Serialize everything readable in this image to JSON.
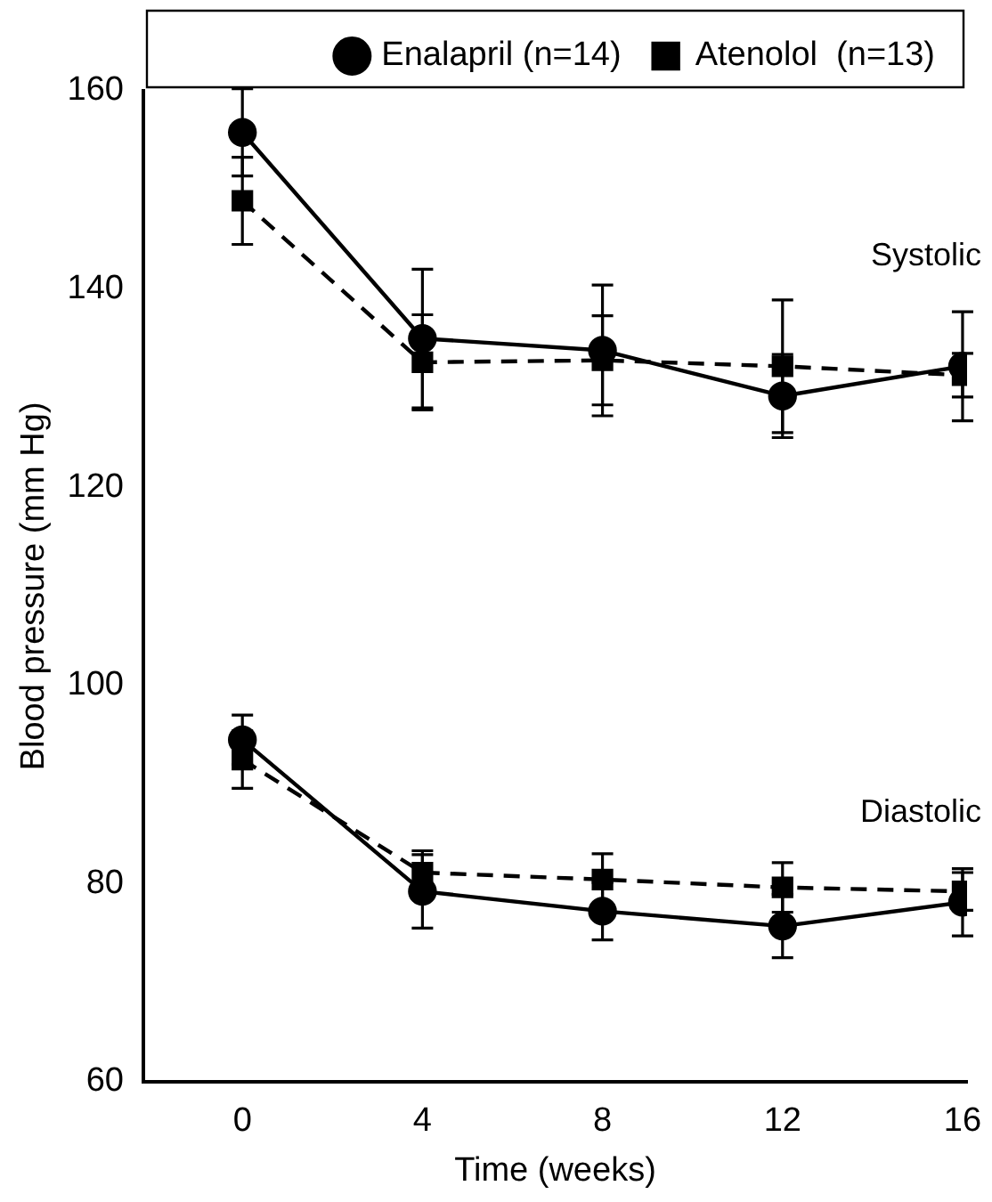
{
  "chart_data": {
    "type": "line",
    "xlabel": "Time (weeks)",
    "ylabel": "Blood pressure (mm Hg)",
    "x": [
      0,
      4,
      8,
      12,
      16
    ],
    "xlim": [
      -2.2,
      16.1
    ],
    "xticks": [
      0,
      4,
      8,
      12,
      16
    ],
    "ylim": [
      60,
      160
    ],
    "yticks": [
      60,
      80,
      100,
      120,
      140,
      160
    ],
    "grid": false,
    "legend": "top right",
    "series": [
      {
        "name": "Enalapril (n=14)",
        "color": "#000000",
        "marker": "circle",
        "line_style": "solid",
        "values": [
          155.8,
          135,
          133.8,
          129.2,
          132.2
        ],
        "errors": [
          4.4,
          7,
          6.6,
          4.2,
          5.5
        ]
      },
      {
        "name": "Atenolol  (n=13)",
        "color": "#000000",
        "marker": "square",
        "line_style": "dashed",
        "values": [
          148.9,
          132.6,
          132.8,
          132.2,
          131.3
        ],
        "errors": [
          4.4,
          4.8,
          4.5,
          6.7,
          2.2
        ]
      },
      {
        "color": "#000000",
        "marker": "circle",
        "line_style": "solid",
        "values": [
          94.5,
          79.2,
          77.2,
          75.7,
          78.1
        ],
        "errors": [
          2.5,
          3.7,
          2.9,
          3.2,
          3.4
        ]
      },
      {
        "color": "#000000",
        "marker": "square",
        "line_style": "dashed",
        "values": [
          92.5,
          81.1,
          80.4,
          79.6,
          79.2
        ],
        "errors": [
          2.9,
          2.2,
          2.6,
          2.5,
          1.9
        ]
      }
    ],
    "annotations": [
      "Systolic",
      "Diastolic"
    ]
  }
}
